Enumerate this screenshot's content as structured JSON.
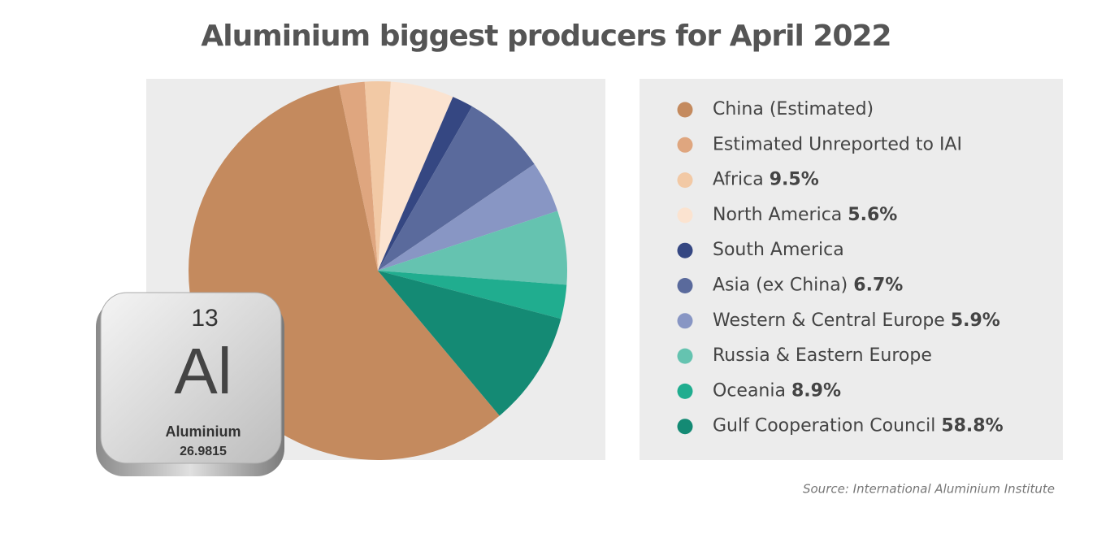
{
  "chart_data": {
    "type": "pie",
    "title": "Aluminium biggest producers for April 2022",
    "categories": [
      "China (Estimated)",
      "Estimated Unreported to IAI",
      "Africa",
      "North America",
      "South America",
      "Asia (ex China)",
      "Western & Central Europe",
      "Russia & Eastern Europe",
      "Oceania",
      "Gulf Cooperation Council"
    ],
    "legend_notes": [
      null,
      null,
      "9.5%",
      "5.6%",
      null,
      "6.7%",
      "5.9%",
      null,
      "8.9%",
      "58.8%"
    ],
    "values": [
      57.8,
      2.2,
      2.2,
      5.4,
      1.8,
      7.2,
      4.4,
      6.3,
      2.9,
      9.8
    ],
    "colors": [
      "#c48a5e",
      "#dfa67f",
      "#f2c9a5",
      "#fbe3d0",
      "#354782",
      "#5a6a9c",
      "#8896c4",
      "#65c3b0",
      "#20ad8f",
      "#148a74"
    ],
    "source": "Source:  International Aluminium Institute"
  },
  "tile": {
    "number": "13",
    "symbol": "Al",
    "name": "Aluminium",
    "mass": "26.9815"
  }
}
